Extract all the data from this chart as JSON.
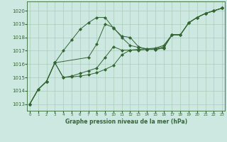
{
  "bg_color": "#cce8e0",
  "grid_color": "#aaccbb",
  "line_color": "#336633",
  "xlim": [
    -0.3,
    23.3
  ],
  "ylim": [
    1012.5,
    1020.7
  ],
  "yticks": [
    1013,
    1014,
    1015,
    1016,
    1017,
    1018,
    1019,
    1020
  ],
  "xticks": [
    0,
    1,
    2,
    3,
    4,
    5,
    6,
    7,
    8,
    9,
    10,
    11,
    12,
    13,
    14,
    15,
    16,
    17,
    18,
    19,
    20,
    21,
    22,
    23
  ],
  "xlabel": "Graphe pression niveau de la mer (hPa)",
  "series": [
    {
      "x": [
        0,
        1,
        2,
        3,
        4,
        5,
        6,
        7,
        8,
        9,
        10,
        11,
        12,
        13,
        14,
        15,
        16,
        17,
        18,
        19,
        20,
        21,
        22,
        23
      ],
      "y": [
        1013.0,
        1014.1,
        1014.7,
        1016.1,
        1017.0,
        1017.8,
        1018.6,
        1019.1,
        1019.5,
        1019.5,
        1018.7,
        1018.1,
        1018.0,
        1017.3,
        1017.1,
        1017.1,
        1017.2,
        1018.2,
        1018.2,
        1019.1,
        1019.5,
        1019.8,
        1020.0,
        1020.2
      ]
    },
    {
      "x": [
        0,
        1,
        2,
        3,
        7,
        8,
        9,
        10,
        11,
        12,
        13,
        14,
        15,
        16,
        17,
        18,
        19,
        20,
        21,
        22,
        23
      ],
      "y": [
        1013.0,
        1014.1,
        1014.7,
        1016.1,
        1016.5,
        1017.5,
        1019.0,
        1018.75,
        1018.0,
        1017.4,
        1017.25,
        1017.15,
        1017.1,
        1017.2,
        1018.2,
        1018.2,
        1019.1,
        1019.5,
        1019.8,
        1020.0,
        1020.2
      ]
    },
    {
      "x": [
        0,
        1,
        2,
        3,
        4,
        5,
        6,
        7,
        8,
        9,
        10,
        11,
        12,
        13,
        14,
        15,
        16,
        17,
        18,
        19,
        20,
        21,
        22,
        23
      ],
      "y": [
        1013.0,
        1014.1,
        1014.7,
        1016.1,
        1015.0,
        1015.1,
        1015.3,
        1015.5,
        1015.7,
        1016.5,
        1017.3,
        1017.05,
        1017.05,
        1017.1,
        1017.15,
        1017.2,
        1017.4,
        1018.2,
        1018.2,
        1019.1,
        1019.5,
        1019.8,
        1020.0,
        1020.2
      ]
    },
    {
      "x": [
        0,
        1,
        2,
        3,
        4,
        5,
        6,
        7,
        8,
        9,
        10,
        11,
        12,
        13,
        14,
        15,
        16,
        17,
        18,
        19,
        20,
        21,
        22,
        23
      ],
      "y": [
        1013.0,
        1014.1,
        1014.7,
        1016.1,
        1015.0,
        1015.05,
        1015.1,
        1015.2,
        1015.35,
        1015.6,
        1015.9,
        1016.7,
        1017.05,
        1017.05,
        1017.1,
        1017.15,
        1017.3,
        1018.2,
        1018.2,
        1019.1,
        1019.5,
        1019.8,
        1020.0,
        1020.2
      ]
    }
  ]
}
